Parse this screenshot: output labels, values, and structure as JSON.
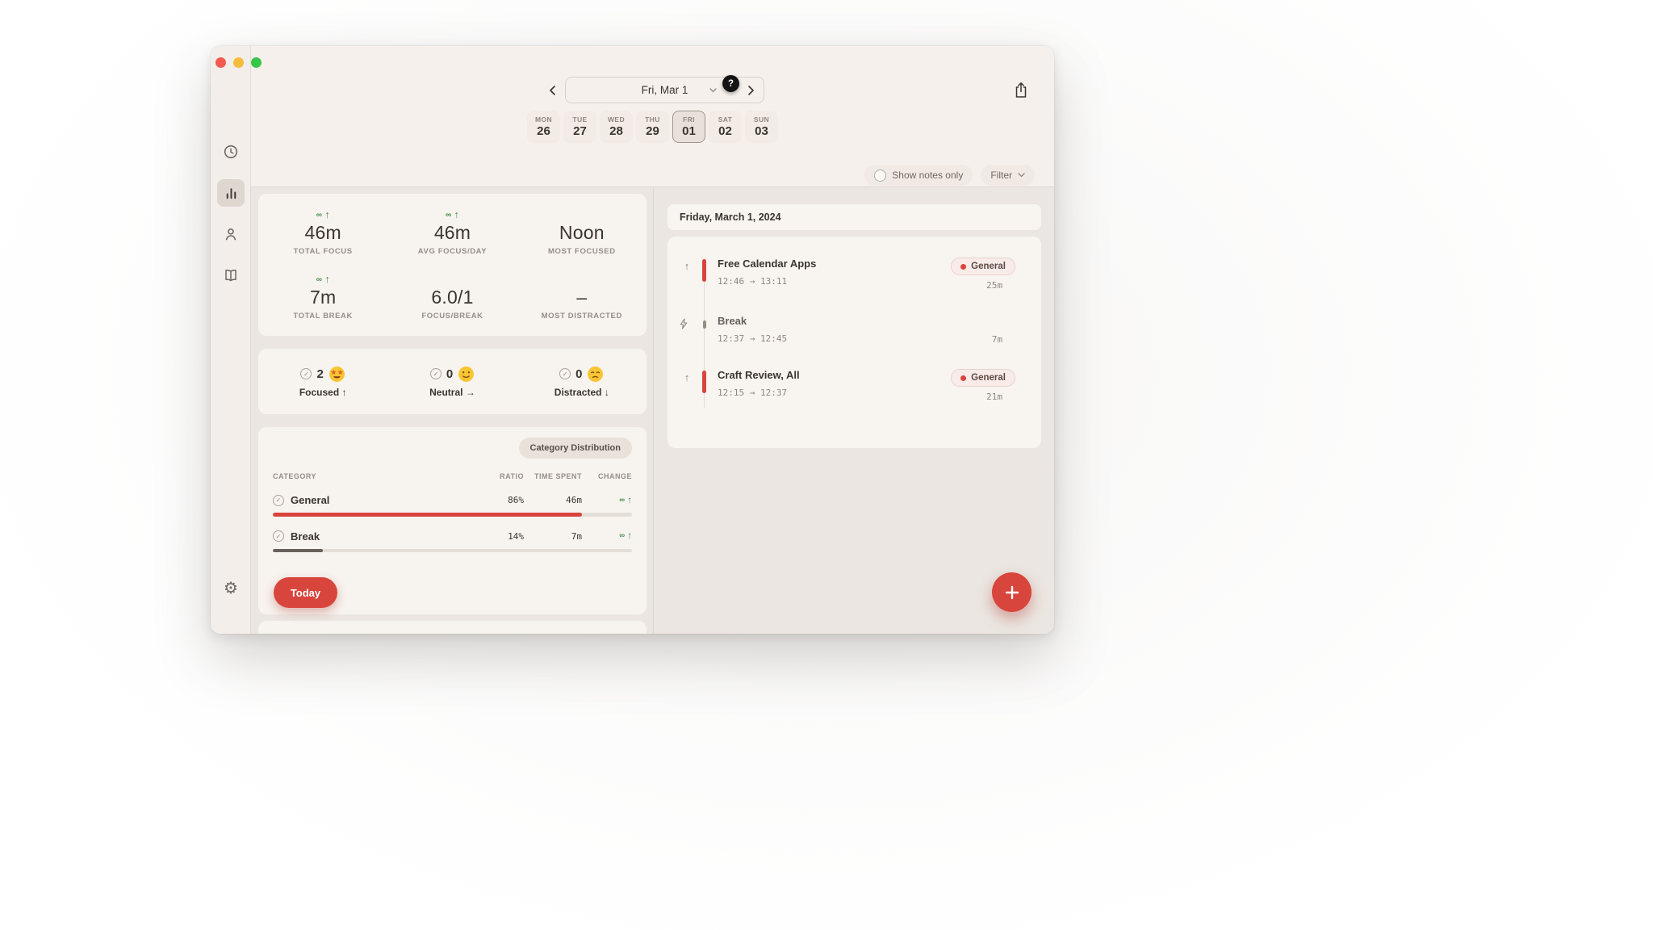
{
  "colors": {
    "accent_red": "#d8453c",
    "accent_green": "#3f8f44",
    "header_bg": "#f6f0ec",
    "content_bg": "#ebe6e1",
    "card_bg": "#f7f3ef"
  },
  "icons": {
    "check": "✓",
    "focus_arrow": "↑",
    "gear": "⚙"
  },
  "header": {
    "date_label": "Fri, Mar 1",
    "help_badge": "?",
    "week": [
      {
        "day": "MON",
        "date": "26",
        "selected": false
      },
      {
        "day": "TUE",
        "date": "27",
        "selected": false
      },
      {
        "day": "WED",
        "date": "28",
        "selected": false
      },
      {
        "day": "THU",
        "date": "29",
        "selected": false
      },
      {
        "day": "FRI",
        "date": "01",
        "selected": true
      },
      {
        "day": "SAT",
        "date": "02",
        "selected": false
      },
      {
        "day": "SUN",
        "date": "03",
        "selected": false
      }
    ],
    "show_notes_label": "Show notes only",
    "filter_label": "Filter"
  },
  "stats": [
    {
      "indicator": "∞",
      "arrow": "↑",
      "value": "46m",
      "label": "TOTAL FOCUS"
    },
    {
      "indicator": "∞",
      "arrow": "↑",
      "value": "46m",
      "label": "AVG FOCUS/DAY"
    },
    {
      "indicator": "",
      "arrow": "",
      "value": "Noon",
      "label": "MOST FOCUSED"
    },
    {
      "indicator": "∞",
      "arrow": "↑",
      "value": "7m",
      "label": "TOTAL BREAK"
    },
    {
      "indicator": "",
      "arrow": "",
      "value": "6.0/1",
      "label": "FOCUS/BREAK"
    },
    {
      "indicator": "",
      "arrow": "",
      "value": "–",
      "label": "MOST DISTRACTED"
    }
  ],
  "moods": [
    {
      "count": "2",
      "emoji": "star-struck",
      "label": "Focused",
      "arrow": "↑"
    },
    {
      "count": "0",
      "emoji": "slightly-smiling",
      "label": "Neutral",
      "arrow": "→"
    },
    {
      "count": "0",
      "emoji": "pensive",
      "label": "Distracted",
      "arrow": "↓"
    }
  ],
  "categories": {
    "pill_label": "Category Distribution",
    "headers": {
      "category": "CATEGORY",
      "ratio": "RATIO",
      "time": "TIME SPENT",
      "change": "CHANGE"
    },
    "rows": [
      {
        "name": "General",
        "ratio": "86%",
        "time": "46m",
        "change_symbol": "∞",
        "change_arrow": "↑",
        "percent": 86,
        "bar_color": "#d8453c"
      },
      {
        "name": "Break",
        "ratio": "14%",
        "time": "7m",
        "change_symbol": "∞",
        "change_arrow": "↑",
        "percent": 14,
        "bar_color": "#67615c"
      }
    ],
    "today_button": "Today"
  },
  "timeline": {
    "date_title": "Friday, March 1, 2024",
    "sessions": [
      {
        "type": "focus",
        "title": "Free Calendar Apps",
        "time_range": "12:46 → 13:11",
        "badge": "General",
        "duration": "25m"
      },
      {
        "type": "break",
        "title": "Break",
        "time_range": "12:37 → 12:45",
        "badge": "",
        "duration": "7m"
      },
      {
        "type": "focus",
        "title": "Craft Review, All",
        "time_range": "12:15 → 12:37",
        "badge": "General",
        "duration": "21m"
      }
    ]
  }
}
